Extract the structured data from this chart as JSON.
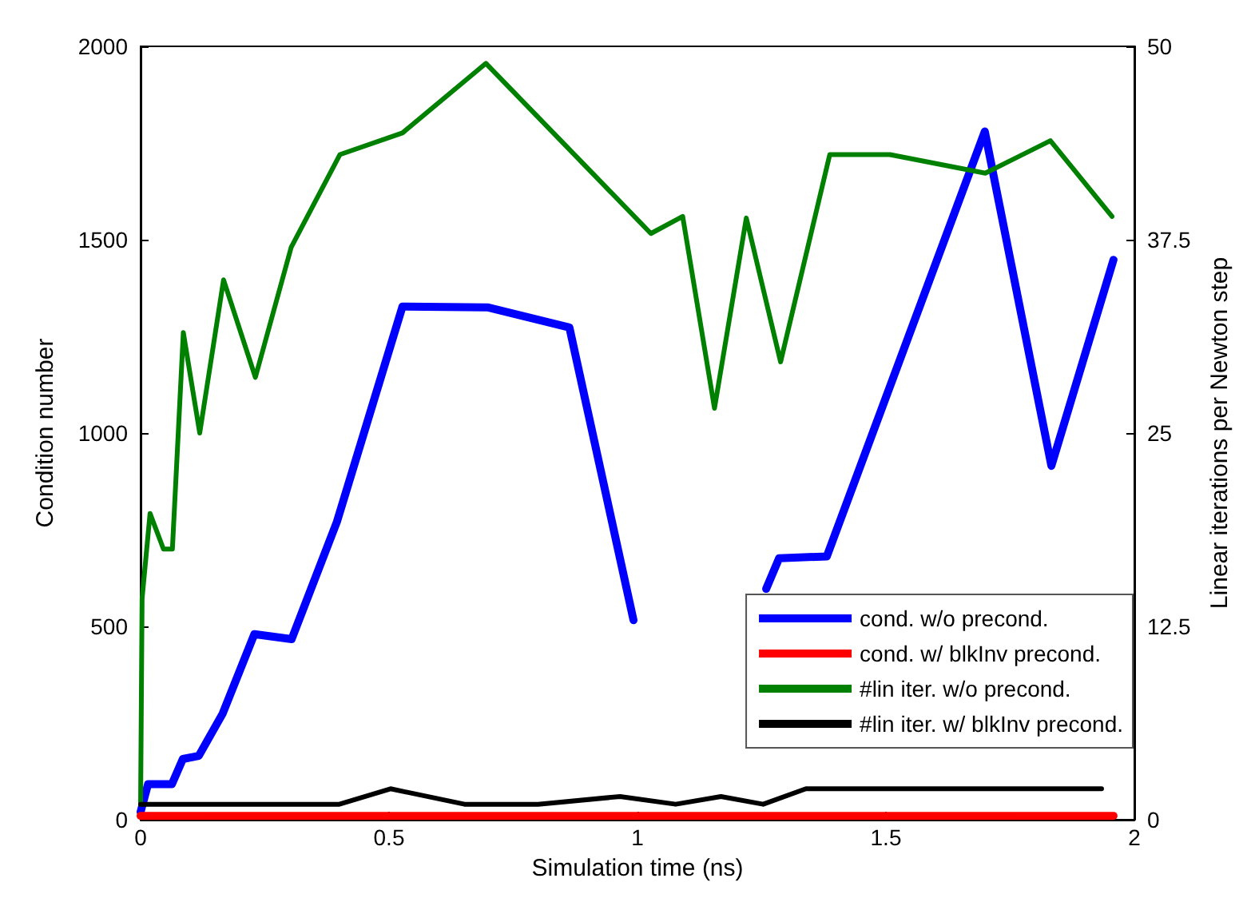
{
  "chart_data": {
    "type": "line",
    "xlabel": "Simulation time (ns)",
    "ylabel": "Condition number",
    "y2label": "Linear iterations per Newton step",
    "xlim": [
      0,
      2
    ],
    "xticks": [
      0,
      0.5,
      1,
      1.5,
      2
    ],
    "ylim": [
      0,
      2000
    ],
    "yticks": [
      0,
      500,
      1000,
      1500,
      2000
    ],
    "y2lim": [
      0,
      50
    ],
    "y2ticks": [
      0,
      12.5,
      25,
      37.5,
      50
    ],
    "grid": false,
    "legend": "bottom right",
    "marker": "none",
    "line_style": "solid",
    "series": [
      {
        "name": "cond. w/o precond.",
        "color": "#0000ff",
        "x": [
          0,
          0.015,
          0.063,
          0.085,
          0.117,
          0.165,
          0.229,
          0.304,
          0.395,
          0.527,
          0.698,
          0.863,
          0.992,
          1.1,
          1.259,
          1.285,
          1.381,
          1.699,
          1.833,
          1.958
        ],
        "values": [
          20,
          92,
          92,
          157,
          165,
          274,
          480,
          467,
          770,
          1327,
          1325,
          1273,
          516,
          null,
          597,
          676,
          681,
          1780,
          915,
          1448
        ]
      },
      {
        "name": "cond. w/ blkInv precond.",
        "color": "#ff0000",
        "x": [
          0,
          0.5,
          1,
          1.5,
          1.958
        ],
        "values": [
          10,
          10,
          10,
          10,
          10
        ]
      },
      {
        "name": "#lin iter. w/o precond.",
        "color": "#008000",
        "axis": "y2",
        "x": [
          0,
          0.003,
          0.019,
          0.046,
          0.064,
          0.086,
          0.119,
          0.167,
          0.231,
          0.303,
          0.401,
          0.527,
          0.695,
          1.027,
          1.091,
          1.155,
          1.219,
          1.288,
          1.387,
          1.508,
          1.7,
          1.831,
          1.955
        ],
        "values": [
          1,
          14.3,
          19.8,
          17.5,
          17.5,
          31.5,
          25,
          34.9,
          28.6,
          37,
          43,
          44.4,
          48.9,
          37.9,
          39,
          26.6,
          38.9,
          29.6,
          43,
          43,
          41.8,
          43.9,
          39
        ]
      },
      {
        "name": "#lin iter. w/ blkInv precond.",
        "color": "#000000",
        "axis": "y2",
        "x": [
          0,
          0.4,
          0.503,
          0.652,
          0.8,
          0.965,
          1.077,
          1.168,
          1.253,
          1.339,
          1.934
        ],
        "values": [
          1,
          1,
          2,
          1,
          1,
          1.5,
          1,
          1.5,
          1,
          2,
          2
        ]
      }
    ]
  }
}
